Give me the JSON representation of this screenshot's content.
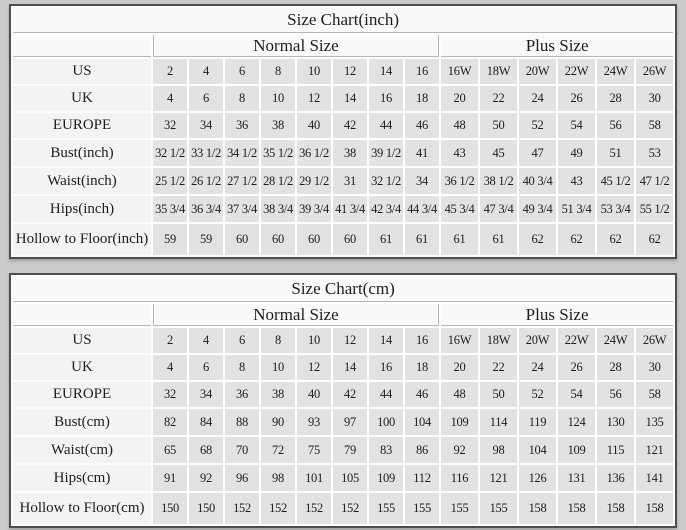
{
  "page": {
    "background": "#cbcbcb",
    "cell_color": "#e2e2e2",
    "label_cell_color": "#f3f3f3",
    "header_color": "#f9f9f9",
    "border_color": "#4e4e4e",
    "grid_line_color": "#b5b5b5"
  },
  "tables": [
    {
      "title": "Size Chart(inch)",
      "group_headers": {
        "normal": "Normal Size",
        "plus": "Plus Size"
      },
      "rows": [
        {
          "label": "US",
          "values": [
            "2",
            "4",
            "6",
            "8",
            "10",
            "12",
            "14",
            "16",
            "16W",
            "18W",
            "20W",
            "22W",
            "24W",
            "26W"
          ]
        },
        {
          "label": "UK",
          "values": [
            "4",
            "6",
            "8",
            "10",
            "12",
            "14",
            "16",
            "18",
            "20",
            "22",
            "24",
            "26",
            "28",
            "30"
          ]
        },
        {
          "label": "EUROPE",
          "values": [
            "32",
            "34",
            "36",
            "38",
            "40",
            "42",
            "44",
            "46",
            "48",
            "50",
            "52",
            "54",
            "56",
            "58"
          ]
        },
        {
          "label": "Bust(inch)",
          "values": [
            "32 1/2",
            "33 1/2",
            "34 1/2",
            "35 1/2",
            "36 1/2",
            "38",
            "39 1/2",
            "41",
            "43",
            "45",
            "47",
            "49",
            "51",
            "53"
          ]
        },
        {
          "label": "Waist(inch)",
          "values": [
            "25 1/2",
            "26 1/2",
            "27 1/2",
            "28 1/2",
            "29 1/2",
            "31",
            "32 1/2",
            "34",
            "36 1/2",
            "38 1/2",
            "40 3/4",
            "43",
            "45 1/2",
            "47 1/2"
          ]
        },
        {
          "label": "Hips(inch)",
          "values": [
            "35 3/4",
            "36 3/4",
            "37 3/4",
            "38 3/4",
            "39 3/4",
            "41 3/4",
            "42 3/4",
            "44 3/4",
            "45 3/4",
            "47 3/4",
            "49 3/4",
            "51 3/4",
            "53 3/4",
            "55 1/2"
          ]
        },
        {
          "label": "Hollow to Floor(inch)",
          "values": [
            "59",
            "59",
            "60",
            "60",
            "60",
            "60",
            "61",
            "61",
            "61",
            "61",
            "62",
            "62",
            "62",
            "62"
          ]
        }
      ]
    },
    {
      "title": "Size Chart(cm)",
      "group_headers": {
        "normal": "Normal Size",
        "plus": "Plus Size"
      },
      "rows": [
        {
          "label": "US",
          "values": [
            "2",
            "4",
            "6",
            "8",
            "10",
            "12",
            "14",
            "16",
            "16W",
            "18W",
            "20W",
            "22W",
            "24W",
            "26W"
          ]
        },
        {
          "label": "UK",
          "values": [
            "4",
            "6",
            "8",
            "10",
            "12",
            "14",
            "16",
            "18",
            "20",
            "22",
            "24",
            "26",
            "28",
            "30"
          ]
        },
        {
          "label": "EUROPE",
          "values": [
            "32",
            "34",
            "36",
            "38",
            "40",
            "42",
            "44",
            "46",
            "48",
            "50",
            "52",
            "54",
            "56",
            "58"
          ]
        },
        {
          "label": "Bust(cm)",
          "values": [
            "82",
            "84",
            "88",
            "90",
            "93",
            "97",
            "100",
            "104",
            "109",
            "114",
            "119",
            "124",
            "130",
            "135"
          ]
        },
        {
          "label": "Waist(cm)",
          "values": [
            "65",
            "68",
            "70",
            "72",
            "75",
            "79",
            "83",
            "86",
            "92",
            "98",
            "104",
            "109",
            "115",
            "121"
          ]
        },
        {
          "label": "Hips(cm)",
          "values": [
            "91",
            "92",
            "96",
            "98",
            "101",
            "105",
            "109",
            "112",
            "116",
            "121",
            "126",
            "131",
            "136",
            "141"
          ]
        },
        {
          "label": "Hollow to Floor(cm)",
          "values": [
            "150",
            "150",
            "152",
            "152",
            "152",
            "152",
            "155",
            "155",
            "155",
            "155",
            "158",
            "158",
            "158",
            "158"
          ]
        }
      ]
    }
  ]
}
